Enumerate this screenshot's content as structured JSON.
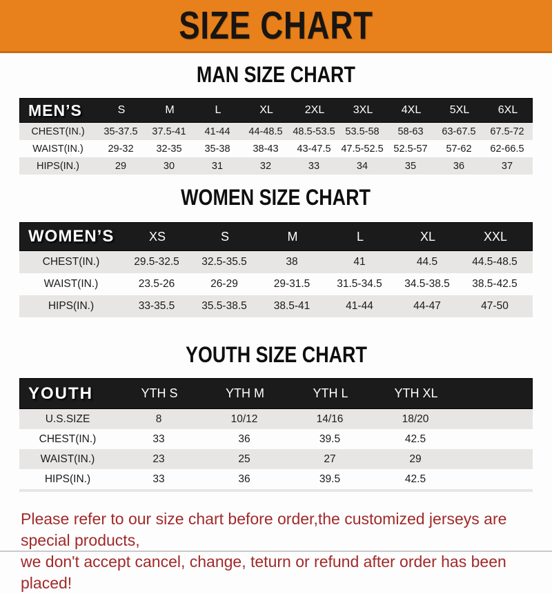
{
  "banner": {
    "title": "SIZE CHART",
    "bg_color": "#E8811B",
    "text_color": "#181512"
  },
  "colors": {
    "header_bar_bg": "#1B1B1B",
    "row_stripe_gray": "#E7E6E4",
    "disclaimer_red": "#A1292A"
  },
  "tables": [
    {
      "heading": "MAN SIZE CHART",
      "header_label": "MEN’S",
      "columns": [
        "S",
        "M",
        "L",
        "XL",
        "2XL",
        "3XL",
        "4XL",
        "5XL",
        "6XL"
      ],
      "rows": [
        {
          "label": "CHEST(IN.)",
          "values": [
            "35-37.5",
            "37.5-41",
            "41-44",
            "44-48.5",
            "48.5-53.5",
            "53.5-58",
            "58-63",
            "63-67.5",
            "67.5-72"
          ]
        },
        {
          "label": "WAIST(IN.)",
          "values": [
            "29-32",
            "32-35",
            "35-38",
            "38-43",
            "43-47.5",
            "47.5-52.5",
            "52.5-57",
            "57-62",
            "62-66.5"
          ]
        },
        {
          "label": "HIPS(IN.)",
          "values": [
            "29",
            "30",
            "31",
            "32",
            "33",
            "34",
            "35",
            "36",
            "37"
          ]
        }
      ]
    },
    {
      "heading": "WOMEN SIZE CHART",
      "header_label": "WOMEN’S",
      "columns": [
        "XS",
        "S",
        "M",
        "L",
        "XL",
        "XXL"
      ],
      "rows": [
        {
          "label": "CHEST(IN.)",
          "values": [
            "29.5-32.5",
            "32.5-35.5",
            "38",
            "41",
            "44.5",
            "44.5-48.5"
          ]
        },
        {
          "label": "WAIST(IN.)",
          "values": [
            "23.5-26",
            "26-29",
            "29-31.5",
            "31.5-34.5",
            "34.5-38.5",
            "38.5-42.5"
          ]
        },
        {
          "label": "HIPS(IN.)",
          "values": [
            "33-35.5",
            "35.5-38.5",
            "38.5-41",
            "41-44",
            "44-47",
            "47-50"
          ]
        }
      ]
    },
    {
      "heading": "YOUTH SIZE CHART",
      "header_label": "YOUTH",
      "columns": [
        "YTH S",
        "YTH M",
        "YTH L",
        "YTH XL"
      ],
      "rows": [
        {
          "label": "U.S.SIZE",
          "values": [
            "8",
            "10/12",
            "14/16",
            "18/20"
          ]
        },
        {
          "label": "CHEST(IN.)",
          "values": [
            "33",
            "36",
            "39.5",
            "42.5"
          ]
        },
        {
          "label": "WAIST(IN.)",
          "values": [
            "23",
            "25",
            "27",
            "29"
          ]
        },
        {
          "label": "HIPS(IN.)",
          "values": [
            "33",
            "36",
            "39.5",
            "42.5"
          ]
        }
      ]
    }
  ],
  "disclaimer": {
    "line1": "Please refer to our size chart before order,the customized jerseys are special products,",
    "line2": "we don't accept cancel, change, teturn or refund after order has been placed!"
  }
}
